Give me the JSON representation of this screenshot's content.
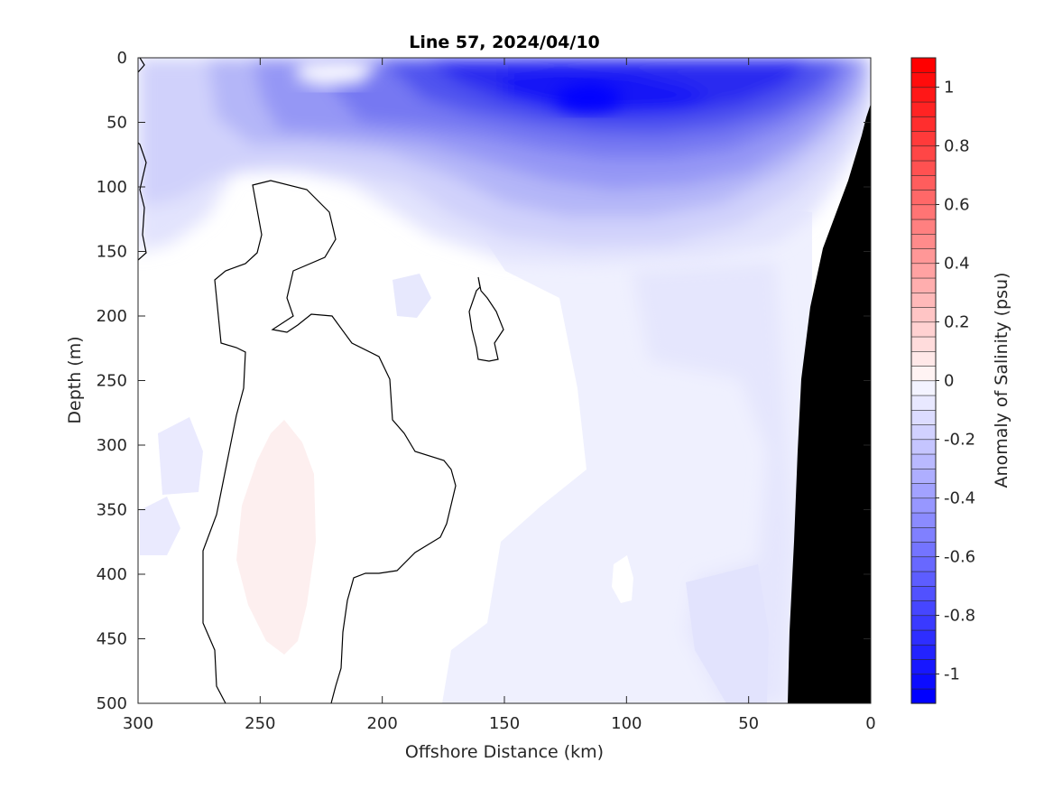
{
  "chart_data": {
    "type": "heatmap",
    "subtype": "filled-contour-section",
    "title": "Line 57, 2024/04/10",
    "xlabel": "Offshore Distance (km)",
    "ylabel": "Depth (m)",
    "xlim": [
      300,
      0
    ],
    "ylim": [
      0,
      500
    ],
    "x_reversed": true,
    "y_reversed": true,
    "x_ticks": [
      "300",
      "250",
      "200",
      "150",
      "100",
      "50",
      "0"
    ],
    "y_ticks": [
      "0",
      "50",
      "100",
      "150",
      "200",
      "250",
      "300",
      "350",
      "400",
      "450",
      "500"
    ],
    "colorbar": {
      "label": "Anomaly of Salinity (psu)",
      "range": [
        -1.1,
        1.1
      ],
      "levels": 44,
      "ticks": [
        "1",
        "0.8",
        "0.6",
        "0.4",
        "0.2",
        "0",
        "-0.2",
        "-0.4",
        "-0.6",
        "-0.8",
        "-1"
      ],
      "colors": {
        "negative": "#0000ff",
        "zero": "#ffffff",
        "positive": "#ff0000"
      }
    },
    "regions": [
      {
        "name": "surface fresh core",
        "anomaly": -1.05,
        "center": [
          115,
          35
        ]
      },
      {
        "name": "upper fresh layer",
        "anomaly": -0.6,
        "x_range": [
          170,
          40
        ],
        "depth_range": [
          0,
          80
        ]
      },
      {
        "name": "weak fresh band",
        "anomaly": -0.2,
        "x_range": [
          300,
          170
        ],
        "depth_range": [
          0,
          100
        ]
      },
      {
        "name": "subsurface fresh tongue",
        "anomaly": -0.1,
        "x_range": [
          180,
          20
        ],
        "depth_range": [
          100,
          500
        ]
      },
      {
        "name": "weak salty lens",
        "anomaly": 0.03,
        "center": [
          245,
          400
        ]
      },
      {
        "name": "bathymetry",
        "fill": "#000000",
        "x_range": [
          33,
          0
        ]
      }
    ],
    "zero_contour": true,
    "grid": false
  }
}
